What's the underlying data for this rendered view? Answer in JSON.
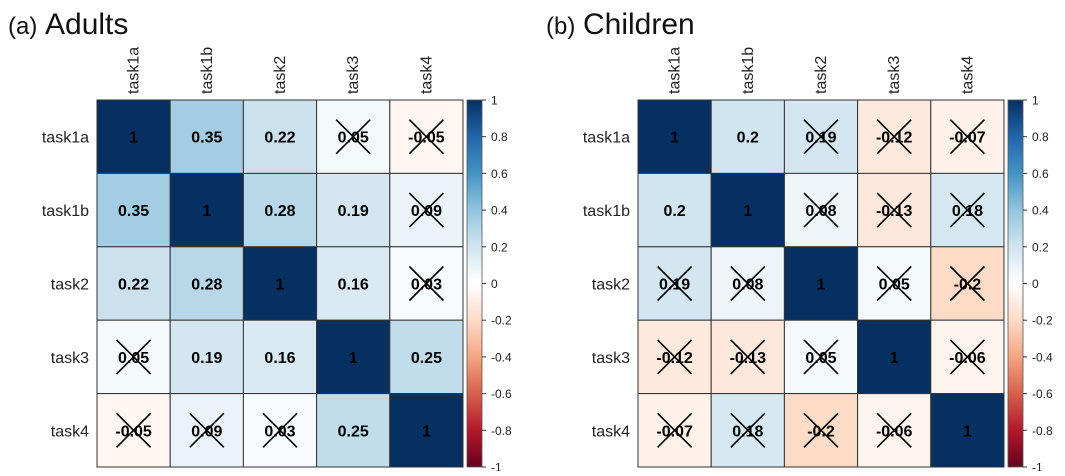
{
  "chart_data": [
    {
      "type": "heatmap",
      "panel_label": "(a)",
      "title": "Adults",
      "rows": [
        "task1a",
        "task1b",
        "task2",
        "task3",
        "task4"
      ],
      "cols": [
        "task1a",
        "task1b",
        "task2",
        "task3",
        "task4"
      ],
      "values": [
        [
          1,
          0.35,
          0.22,
          0.05,
          -0.05
        ],
        [
          0.35,
          1,
          0.28,
          0.19,
          0.09
        ],
        [
          0.22,
          0.28,
          1,
          0.16,
          0.03
        ],
        [
          0.05,
          0.19,
          0.16,
          1,
          0.25
        ],
        [
          -0.05,
          0.09,
          0.03,
          0.25,
          1
        ]
      ],
      "labels": [
        [
          "1",
          "0.35",
          "0.22",
          "0.05",
          "-0.05"
        ],
        [
          "0.35",
          "1",
          "0.28",
          "0.19",
          "0.09"
        ],
        [
          "0.22",
          "0.28",
          "1",
          "0.16",
          "0.03"
        ],
        [
          "0.05",
          "0.19",
          "0.16",
          "1",
          "0.25"
        ],
        [
          "-0.05",
          "0.09",
          "0.03",
          "0.25",
          "1"
        ]
      ],
      "crossed_out": [
        [
          false,
          false,
          false,
          true,
          true
        ],
        [
          false,
          false,
          false,
          false,
          true
        ],
        [
          false,
          false,
          false,
          false,
          true
        ],
        [
          true,
          false,
          false,
          false,
          false
        ],
        [
          true,
          true,
          true,
          false,
          false
        ]
      ],
      "colorbar": {
        "range": [
          -1,
          1
        ],
        "ticks": [
          "1",
          "0.8",
          "0.6",
          "0.4",
          "0.2",
          "0",
          "-0.2",
          "-0.4",
          "-0.6",
          "-0.8",
          "-1"
        ],
        "colors": [
          "#67001f",
          "#b2182b",
          "#d6604d",
          "#f4a582",
          "#fddbc7",
          "#ffffff",
          "#d1e5f0",
          "#92c5de",
          "#4393c3",
          "#2166ac",
          "#053061"
        ]
      }
    },
    {
      "type": "heatmap",
      "panel_label": "(b)",
      "title": "Children",
      "rows": [
        "task1a",
        "task1b",
        "task2",
        "task3",
        "task4"
      ],
      "cols": [
        "task1a",
        "task1b",
        "task2",
        "task3",
        "task4"
      ],
      "values": [
        [
          1,
          0.2,
          0.19,
          -0.12,
          -0.07
        ],
        [
          0.2,
          1,
          0.08,
          -0.13,
          0.18
        ],
        [
          0.19,
          0.08,
          1,
          0.05,
          -0.2
        ],
        [
          -0.12,
          -0.13,
          0.05,
          1,
          -0.06
        ],
        [
          -0.07,
          0.18,
          -0.2,
          -0.06,
          1
        ]
      ],
      "labels": [
        [
          "1",
          "0.2",
          "0.19",
          "-0.12",
          "-0.07"
        ],
        [
          "0.2",
          "1",
          "0.08",
          "-0.13",
          "0.18"
        ],
        [
          "0.19",
          "0.08",
          "1",
          "0.05",
          "-0.2"
        ],
        [
          "-0.12",
          "-0.13",
          "0.05",
          "1",
          "-0.06"
        ],
        [
          "-0.07",
          "0.18",
          "-0.2",
          "-0.06",
          "1"
        ]
      ],
      "crossed_out": [
        [
          false,
          false,
          true,
          true,
          true
        ],
        [
          false,
          false,
          true,
          true,
          true
        ],
        [
          true,
          true,
          false,
          true,
          true
        ],
        [
          true,
          true,
          true,
          false,
          true
        ],
        [
          true,
          true,
          true,
          true,
          false
        ]
      ],
      "colorbar": {
        "range": [
          -1,
          1
        ],
        "ticks": [
          "1",
          "0.8",
          "0.6",
          "0.4",
          "0.2",
          "0",
          "-0.2",
          "-0.4",
          "-0.6",
          "-0.8",
          "-1"
        ],
        "colors": [
          "#67001f",
          "#b2182b",
          "#d6604d",
          "#f4a582",
          "#fddbc7",
          "#ffffff",
          "#d1e5f0",
          "#92c5de",
          "#4393c3",
          "#2166ac",
          "#053061"
        ]
      }
    }
  ]
}
